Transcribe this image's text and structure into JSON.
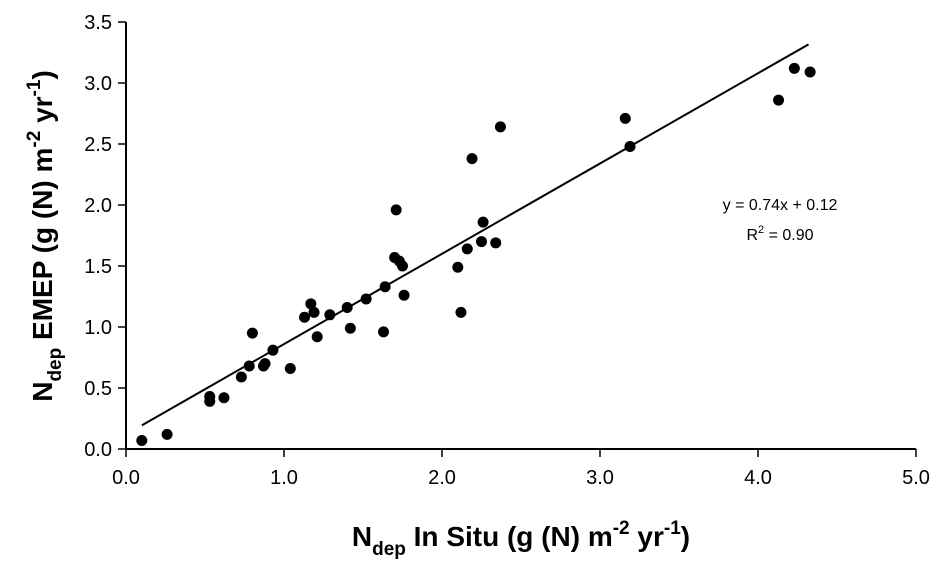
{
  "chart_data": {
    "type": "scatter",
    "title": "",
    "xlabel": {
      "base": "N",
      "sub": "dep",
      "text": " In Situ (g (N) m",
      "sup1": "-2",
      "text2": " yr",
      "sup2": "-1",
      "text3": ")"
    },
    "ylabel": {
      "base": "N",
      "sub": "dep",
      "text": " EMEP (g (N) m",
      "sup1": "-2",
      "text2": " yr",
      "sup2": "-1",
      "text3": ")"
    },
    "xlim": [
      0,
      5
    ],
    "ylim": [
      0,
      3.5
    ],
    "xticks": [
      "0.0",
      "1.0",
      "2.0",
      "3.0",
      "4.0",
      "5.0"
    ],
    "yticks": [
      "0.0",
      "0.5",
      "1.0",
      "1.5",
      "2.0",
      "2.5",
      "3.0",
      "3.5"
    ],
    "grid": false,
    "legend": "none",
    "marker_color": "#000000",
    "points": [
      {
        "x": 0.1,
        "y": 0.07
      },
      {
        "x": 0.26,
        "y": 0.12
      },
      {
        "x": 0.53,
        "y": 0.39
      },
      {
        "x": 0.53,
        "y": 0.43
      },
      {
        "x": 0.62,
        "y": 0.42
      },
      {
        "x": 0.73,
        "y": 0.59
      },
      {
        "x": 0.78,
        "y": 0.68
      },
      {
        "x": 0.8,
        "y": 0.95
      },
      {
        "x": 0.87,
        "y": 0.68
      },
      {
        "x": 0.88,
        "y": 0.7
      },
      {
        "x": 0.93,
        "y": 0.81
      },
      {
        "x": 1.04,
        "y": 0.66
      },
      {
        "x": 1.13,
        "y": 1.08
      },
      {
        "x": 1.17,
        "y": 1.19
      },
      {
        "x": 1.19,
        "y": 1.12
      },
      {
        "x": 1.21,
        "y": 0.92
      },
      {
        "x": 1.29,
        "y": 1.1
      },
      {
        "x": 1.4,
        "y": 1.16
      },
      {
        "x": 1.42,
        "y": 0.99
      },
      {
        "x": 1.52,
        "y": 1.23
      },
      {
        "x": 1.63,
        "y": 0.96
      },
      {
        "x": 1.64,
        "y": 1.33
      },
      {
        "x": 1.7,
        "y": 1.57
      },
      {
        "x": 1.71,
        "y": 1.96
      },
      {
        "x": 1.73,
        "y": 1.54
      },
      {
        "x": 1.75,
        "y": 1.5
      },
      {
        "x": 1.76,
        "y": 1.26
      },
      {
        "x": 2.1,
        "y": 1.49
      },
      {
        "x": 2.12,
        "y": 1.12
      },
      {
        "x": 2.16,
        "y": 1.64
      },
      {
        "x": 2.19,
        "y": 2.38
      },
      {
        "x": 2.25,
        "y": 1.7
      },
      {
        "x": 2.26,
        "y": 1.86
      },
      {
        "x": 2.34,
        "y": 1.69
      },
      {
        "x": 2.37,
        "y": 2.64
      },
      {
        "x": 3.16,
        "y": 2.71
      },
      {
        "x": 3.19,
        "y": 2.48
      },
      {
        "x": 4.13,
        "y": 2.86
      },
      {
        "x": 4.23,
        "y": 3.12
      },
      {
        "x": 4.33,
        "y": 3.09
      }
    ],
    "trendline": {
      "slope": 0.74,
      "intercept": 0.12,
      "x_start": 0.1,
      "x_end": 4.32
    },
    "annotation": {
      "equation": "y = 0.74x + 0.12",
      "r2_base": "R",
      "r2_sup": "2",
      "r2_value": " = 0.90"
    }
  }
}
